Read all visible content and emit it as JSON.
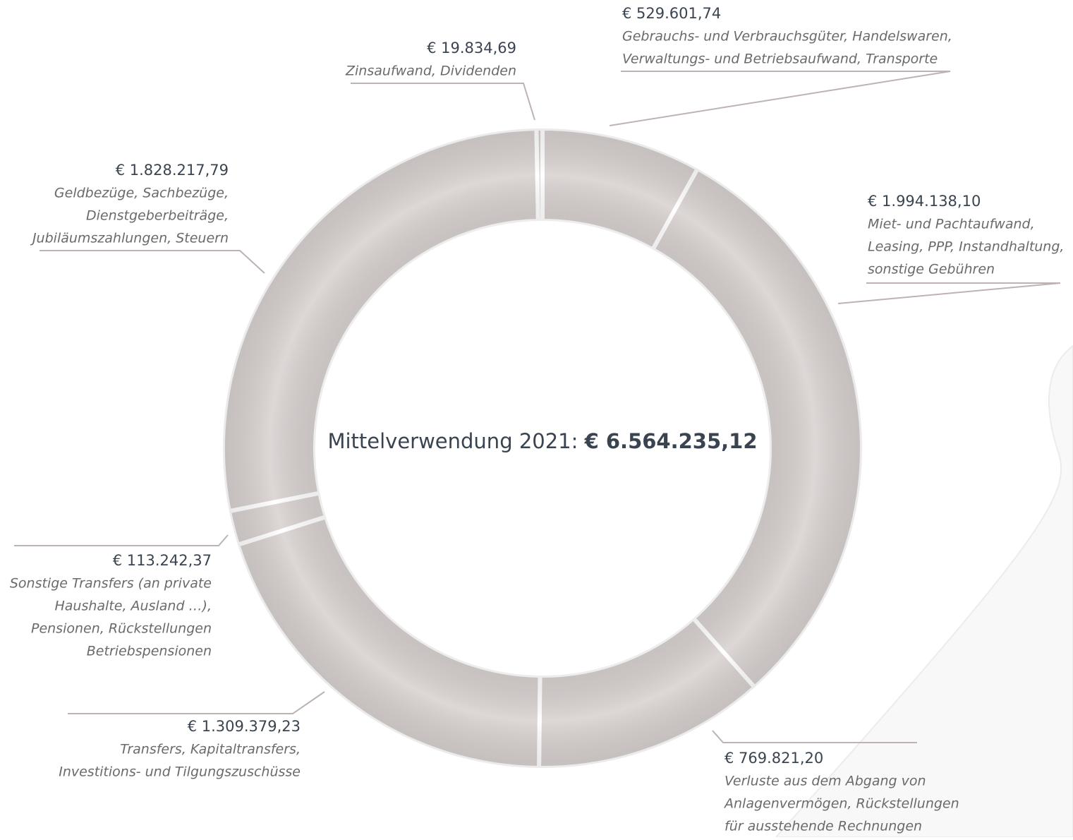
{
  "chart_data": {
    "type": "donut",
    "title": "Mittelverwendung 2021:",
    "total_label": "€ 6.564.235,12",
    "color": "#d7d0cf",
    "values": [
      529601.74,
      1994138.1,
      769821.2,
      1309379.23,
      113242.37,
      1828217.79,
      19834.69
    ],
    "value_labels": [
      "€ 529.601,74",
      "€ 1.994.138,10",
      "€ 769.821,20",
      "€ 1.309.379,23",
      "€ 113.242,37",
      "€ 1.828.217,79",
      "€ 19.834,69"
    ],
    "categories": [
      [
        "Gebrauchs- und Verbrauchsgüter, Handelswaren,",
        "Verwaltungs- und Betriebsaufwand, Transporte"
      ],
      [
        "Miet- und Pachtaufwand,",
        "Leasing, PPP, Instandhaltung,",
        "sonstige Gebühren"
      ],
      [
        "Verluste aus dem Abgang von",
        "Anlagenvermögen, Rückstellungen",
        "für ausstehende Rechnungen"
      ],
      [
        "Transfers, Kapitaltransfers,",
        "Investitions- und Tilgungszuschüsse"
      ],
      [
        "Sonstige Transfers (an private",
        "Haushalte, Ausland …),",
        "Pensionen, Rückstellungen",
        "Betriebspensionen"
      ],
      [
        "Geldbezüge, Sachbezüge,",
        "Dienstgeberbeiträge,",
        "Jubiläumszahlungen, Steuern"
      ],
      [
        "Zinsaufwand, Dividenden"
      ]
    ]
  }
}
